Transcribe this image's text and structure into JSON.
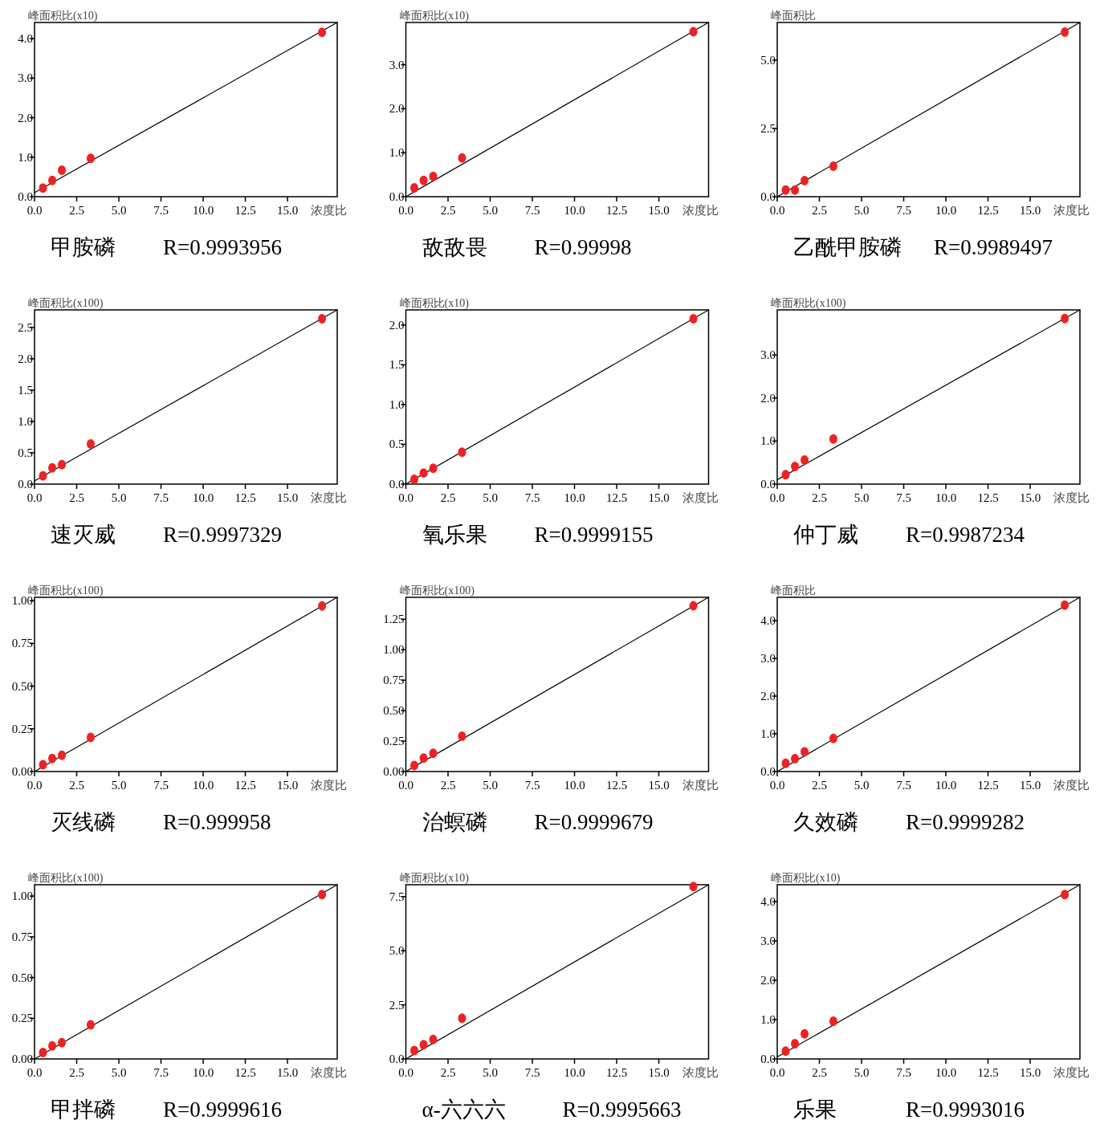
{
  "chart_data": [
    {
      "type": "scatter",
      "title": "甲胺磷",
      "annotations": [
        "R=0.9993956"
      ],
      "ylabel": "峰面积比(x10)",
      "xlabel": "浓度比",
      "xlim": [
        0,
        17.95
      ],
      "ylim": [
        0,
        4.41
      ],
      "xticks": [
        {
          "value": 0,
          "label": "0.0"
        },
        2.5,
        {
          "value": 5,
          "label": "5.0"
        },
        7.5,
        {
          "value": 10,
          "label": "10.0"
        },
        12.5,
        {
          "value": 15,
          "label": "15.0"
        }
      ],
      "yticks": [
        {
          "value": 0,
          "label": "0.0"
        },
        {
          "value": 1,
          "label": "1.0"
        },
        {
          "value": 2,
          "label": "2.0"
        },
        {
          "value": 3,
          "label": "3.0"
        },
        {
          "value": 4,
          "label": "4.0"
        }
      ],
      "marker": "circle",
      "series": [
        {
          "type": "line",
          "color": "#000000",
          "marker": "none",
          "x": [
            0,
            17.95
          ],
          "values": [
            0.1,
            4.41
          ]
        },
        {
          "type": "scatter",
          "color": "#ee2222",
          "x": [
            0.5,
            1.05,
            1.62,
            3.33,
            17.05
          ],
          "values": [
            0.22,
            0.41,
            0.67,
            0.97,
            4.16
          ]
        }
      ]
    },
    {
      "type": "scatter",
      "title": "敌敌畏",
      "annotations": [
        "R=0.99998"
      ],
      "ylabel": "峰面积比(x10)",
      "xlabel": "浓度比",
      "xlim": [
        0,
        17.95
      ],
      "ylim": [
        0,
        3.96
      ],
      "xticks": [
        {
          "value": 0,
          "label": "0.0"
        },
        2.5,
        {
          "value": 5,
          "label": "5.0"
        },
        7.5,
        {
          "value": 10,
          "label": "10.0"
        },
        12.5,
        {
          "value": 15,
          "label": "15.0"
        }
      ],
      "yticks": [
        {
          "value": 0,
          "label": "0.0"
        },
        {
          "value": 1,
          "label": "1.0"
        },
        {
          "value": 2,
          "label": "2.0"
        },
        {
          "value": 3,
          "label": "3.0"
        }
      ],
      "marker": "circle",
      "series": [
        {
          "type": "line",
          "color": "#000000",
          "marker": "none",
          "x": [
            0,
            17.95
          ],
          "values": [
            0,
            3.96
          ]
        },
        {
          "type": "scatter",
          "color": "#ee2222",
          "x": [
            0.5,
            1.05,
            1.62,
            3.33,
            17.05
          ],
          "values": [
            0.2,
            0.37,
            0.46,
            0.88,
            3.75
          ]
        }
      ]
    },
    {
      "type": "scatter",
      "title": "乙酰甲胺磷",
      "annotations": [
        "R=0.9989497"
      ],
      "ylabel": "峰面积比",
      "xlabel": "浓度比",
      "xlim": [
        0,
        17.95
      ],
      "ylim": [
        0,
        6.38
      ],
      "xticks": [
        {
          "value": 0,
          "label": "0.0"
        },
        2.5,
        {
          "value": 5,
          "label": "5.0"
        },
        7.5,
        {
          "value": 10,
          "label": "10.0"
        },
        12.5,
        {
          "value": 15,
          "label": "15.0"
        }
      ],
      "yticks": [
        {
          "value": 0,
          "label": "0.0"
        },
        2.5,
        {
          "value": 5,
          "label": "5.0"
        }
      ],
      "marker": "circle",
      "series": [
        {
          "type": "line",
          "color": "#000000",
          "marker": "none",
          "x": [
            0,
            17.95
          ],
          "values": [
            0,
            6.38
          ]
        },
        {
          "type": "scatter",
          "color": "#ee2222",
          "x": [
            0.5,
            1.05,
            1.62,
            3.33,
            17.05
          ],
          "values": [
            0.24,
            0.24,
            0.59,
            1.12,
            6.03
          ]
        }
      ]
    },
    {
      "type": "scatter",
      "title": "速灭威",
      "annotations": [
        "R=0.9997329"
      ],
      "ylabel": "峰面积比(x100)",
      "xlabel": "浓度比",
      "xlim": [
        0,
        17.95
      ],
      "ylim": [
        0,
        2.78
      ],
      "xticks": [
        {
          "value": 0,
          "label": "0.0"
        },
        2.5,
        {
          "value": 5,
          "label": "5.0"
        },
        7.5,
        {
          "value": 10,
          "label": "10.0"
        },
        12.5,
        {
          "value": 15,
          "label": "15.0"
        }
      ],
      "yticks": [
        {
          "value": 0,
          "label": "0.0"
        },
        0.5,
        {
          "value": 1,
          "label": "1.0"
        },
        1.5,
        {
          "value": 2,
          "label": "2.0"
        },
        2.5
      ],
      "marker": "circle",
      "series": [
        {
          "type": "line",
          "color": "#000000",
          "marker": "none",
          "x": [
            0,
            17.95
          ],
          "values": [
            0.05,
            2.78
          ]
        },
        {
          "type": "scatter",
          "color": "#ee2222",
          "x": [
            0.5,
            1.05,
            1.62,
            3.33,
            17.05
          ],
          "values": [
            0.13,
            0.26,
            0.31,
            0.64,
            2.64
          ]
        }
      ]
    },
    {
      "type": "scatter",
      "title": "氧乐果",
      "annotations": [
        "R=0.9999155"
      ],
      "ylabel": "峰面积比(x10)",
      "xlabel": "浓度比",
      "xlim": [
        0,
        17.95
      ],
      "ylim": [
        0,
        2.19
      ],
      "xticks": [
        {
          "value": 0,
          "label": "0.0"
        },
        2.5,
        {
          "value": 5,
          "label": "5.0"
        },
        7.5,
        {
          "value": 10,
          "label": "10.0"
        },
        12.5,
        {
          "value": 15,
          "label": "15.0"
        }
      ],
      "yticks": [
        {
          "value": 0,
          "label": "0.0"
        },
        0.5,
        {
          "value": 1,
          "label": "1.0"
        },
        1.5,
        {
          "value": 2,
          "label": "2.0"
        }
      ],
      "marker": "circle",
      "series": [
        {
          "type": "line",
          "color": "#000000",
          "marker": "none",
          "x": [
            0,
            17.95
          ],
          "values": [
            0,
            2.19
          ]
        },
        {
          "type": "scatter",
          "color": "#ee2222",
          "x": [
            0.5,
            1.05,
            1.62,
            3.33,
            17.05
          ],
          "values": [
            0.06,
            0.14,
            0.2,
            0.4,
            2.08
          ]
        }
      ]
    },
    {
      "type": "scatter",
      "title": "仲丁威",
      "annotations": [
        "R=0.9987234"
      ],
      "ylabel": "峰面积比(x100)",
      "xlabel": "浓度比",
      "xlim": [
        0,
        17.95
      ],
      "ylim": [
        0,
        4.05
      ],
      "xticks": [
        {
          "value": 0,
          "label": "0.0"
        },
        2.5,
        {
          "value": 5,
          "label": "5.0"
        },
        7.5,
        {
          "value": 10,
          "label": "10.0"
        },
        12.5,
        {
          "value": 15,
          "label": "15.0"
        }
      ],
      "yticks": [
        {
          "value": 0,
          "label": "0.0"
        },
        {
          "value": 1,
          "label": "1.0"
        },
        {
          "value": 2,
          "label": "2.0"
        },
        {
          "value": 3,
          "label": "3.0"
        }
      ],
      "marker": "circle",
      "series": [
        {
          "type": "line",
          "color": "#000000",
          "marker": "none",
          "x": [
            0,
            17.95
          ],
          "values": [
            0.1,
            4.05
          ]
        },
        {
          "type": "scatter",
          "color": "#ee2222",
          "x": [
            0.5,
            1.05,
            1.62,
            3.33,
            17.05
          ],
          "values": [
            0.22,
            0.41,
            0.56,
            1.05,
            3.85
          ]
        }
      ]
    },
    {
      "type": "scatter",
      "title": "灭线磷",
      "annotations": [
        "R=0.999958"
      ],
      "ylabel": "峰面积比(x100)",
      "xlabel": "浓度比",
      "xlim": [
        0,
        17.95
      ],
      "ylim": [
        0,
        1.02
      ],
      "xticks": [
        {
          "value": 0,
          "label": "0.0"
        },
        2.5,
        {
          "value": 5,
          "label": "5.0"
        },
        7.5,
        {
          "value": 10,
          "label": "10.0"
        },
        12.5,
        {
          "value": 15,
          "label": "15.0"
        }
      ],
      "yticks": [
        {
          "value": 0,
          "label": "0.00"
        },
        0.25,
        {
          "value": 0.5,
          "label": "0.50"
        },
        0.75,
        {
          "value": 1,
          "label": "1.00"
        }
      ],
      "marker": "circle",
      "series": [
        {
          "type": "line",
          "color": "#000000",
          "marker": "none",
          "x": [
            0,
            17.95
          ],
          "values": [
            0,
            1.02
          ]
        },
        {
          "type": "scatter",
          "color": "#ee2222",
          "x": [
            0.5,
            1.05,
            1.62,
            3.33,
            17.05
          ],
          "values": [
            0.04,
            0.076,
            0.095,
            0.2,
            0.97
          ]
        }
      ]
    },
    {
      "type": "scatter",
      "title": "治螟磷",
      "annotations": [
        "R=0.9999679"
      ],
      "ylabel": "峰面积比(x100)",
      "xlabel": "浓度比",
      "xlim": [
        0,
        17.95
      ],
      "ylim": [
        0,
        1.43
      ],
      "xticks": [
        {
          "value": 0,
          "label": "0.0"
        },
        2.5,
        {
          "value": 5,
          "label": "5.0"
        },
        7.5,
        {
          "value": 10,
          "label": "10.0"
        },
        12.5,
        {
          "value": 15,
          "label": "15.0"
        }
      ],
      "yticks": [
        {
          "value": 0,
          "label": "0.00"
        },
        0.25,
        {
          "value": 0.5,
          "label": "0.50"
        },
        0.75,
        {
          "value": 1,
          "label": "1.00"
        },
        1.25
      ],
      "marker": "circle",
      "series": [
        {
          "type": "line",
          "color": "#000000",
          "marker": "none",
          "x": [
            0,
            17.95
          ],
          "values": [
            0,
            1.43
          ]
        },
        {
          "type": "scatter",
          "color": "#ee2222",
          "x": [
            0.5,
            1.05,
            1.62,
            3.33,
            17.05
          ],
          "values": [
            0.05,
            0.11,
            0.15,
            0.29,
            1.36
          ]
        }
      ]
    },
    {
      "type": "scatter",
      "title": "久效磷",
      "annotations": [
        "R=0.9999282"
      ],
      "ylabel": "峰面积比",
      "xlabel": "浓度比",
      "xlim": [
        0,
        17.95
      ],
      "ylim": [
        0,
        4.62
      ],
      "xticks": [
        {
          "value": 0,
          "label": "0.0"
        },
        2.5,
        {
          "value": 5,
          "label": "5.0"
        },
        7.5,
        {
          "value": 10,
          "label": "10.0"
        },
        12.5,
        {
          "value": 15,
          "label": "15.0"
        }
      ],
      "yticks": [
        {
          "value": 0,
          "label": "0.0"
        },
        {
          "value": 1,
          "label": "1.0"
        },
        {
          "value": 2,
          "label": "2.0"
        },
        {
          "value": 3,
          "label": "3.0"
        },
        {
          "value": 4,
          "label": "4.0"
        }
      ],
      "marker": "circle",
      "series": [
        {
          "type": "line",
          "color": "#000000",
          "marker": "none",
          "x": [
            0,
            17.95
          ],
          "values": [
            0,
            4.62
          ]
        },
        {
          "type": "scatter",
          "color": "#ee2222",
          "x": [
            0.5,
            1.05,
            1.62,
            3.33,
            17.05
          ],
          "values": [
            0.22,
            0.34,
            0.52,
            0.88,
            4.41
          ]
        }
      ]
    },
    {
      "type": "scatter",
      "title": "甲拌磷",
      "annotations": [
        "R=0.9999616"
      ],
      "ylabel": "峰面积比(x100)",
      "xlabel": "浓度比",
      "xlim": [
        0,
        17.95
      ],
      "ylim": [
        0,
        1.07
      ],
      "xticks": [
        {
          "value": 0,
          "label": "0.0"
        },
        2.5,
        {
          "value": 5,
          "label": "5.0"
        },
        7.5,
        {
          "value": 10,
          "label": "10.0"
        },
        12.5,
        {
          "value": 15,
          "label": "15.0"
        }
      ],
      "yticks": [
        {
          "value": 0,
          "label": "0.00"
        },
        0.25,
        {
          "value": 0.5,
          "label": "0.50"
        },
        0.75,
        {
          "value": 1,
          "label": "1.00"
        }
      ],
      "marker": "circle",
      "series": [
        {
          "type": "line",
          "color": "#000000",
          "marker": "none",
          "x": [
            0,
            17.95
          ],
          "values": [
            0,
            1.07
          ]
        },
        {
          "type": "scatter",
          "color": "#ee2222",
          "x": [
            0.5,
            1.05,
            1.62,
            3.33,
            17.05
          ],
          "values": [
            0.04,
            0.08,
            0.1,
            0.21,
            1.01
          ]
        }
      ]
    },
    {
      "type": "scatter",
      "title": "α-六六六",
      "annotations": [
        "R=0.9995663"
      ],
      "ylabel": "峰面积比(x10)",
      "xlabel": "浓度比",
      "xlim": [
        0,
        17.95
      ],
      "ylim": [
        0,
        8.05
      ],
      "xticks": [
        {
          "value": 0,
          "label": "0.0"
        },
        2.5,
        {
          "value": 5,
          "label": "5.0"
        },
        7.5,
        {
          "value": 10,
          "label": "10.0"
        },
        12.5,
        {
          "value": 15,
          "label": "15.0"
        }
      ],
      "yticks": [
        {
          "value": 0,
          "label": "0.0"
        },
        2.5,
        {
          "value": 5,
          "label": "5.0"
        },
        7.5
      ],
      "marker": "circle",
      "series": [
        {
          "type": "line",
          "color": "#000000",
          "marker": "none",
          "x": [
            0,
            17.95
          ],
          "values": [
            0,
            8.05
          ]
        },
        {
          "type": "scatter",
          "color": "#ee2222",
          "x": [
            0.5,
            1.05,
            1.62,
            3.33,
            17.05
          ],
          "values": [
            0.39,
            0.66,
            0.9,
            1.88,
            7.97
          ]
        }
      ]
    },
    {
      "type": "scatter",
      "title": "乐果",
      "annotations": [
        "R=0.9993016"
      ],
      "ylabel": "峰面积比(x10)",
      "xlabel": "浓度比",
      "xlim": [
        0,
        17.95
      ],
      "ylim": [
        0,
        4.43
      ],
      "xticks": [
        {
          "value": 0,
          "label": "0.0"
        },
        2.5,
        {
          "value": 5,
          "label": "5.0"
        },
        7.5,
        {
          "value": 10,
          "label": "10.0"
        },
        12.5,
        {
          "value": 15,
          "label": "15.0"
        }
      ],
      "yticks": [
        {
          "value": 0,
          "label": "0.0"
        },
        {
          "value": 1,
          "label": "1.0"
        },
        {
          "value": 2,
          "label": "2.0"
        },
        {
          "value": 3,
          "label": "3.0"
        },
        {
          "value": 4,
          "label": "4.0"
        }
      ],
      "marker": "circle",
      "series": [
        {
          "type": "line",
          "color": "#000000",
          "marker": "none",
          "x": [
            0,
            17.95
          ],
          "values": [
            0.05,
            4.43
          ]
        },
        {
          "type": "scatter",
          "color": "#ee2222",
          "x": [
            0.5,
            1.05,
            1.62,
            3.33,
            17.05
          ],
          "values": [
            0.2,
            0.39,
            0.64,
            0.96,
            4.18
          ]
        }
      ]
    }
  ]
}
